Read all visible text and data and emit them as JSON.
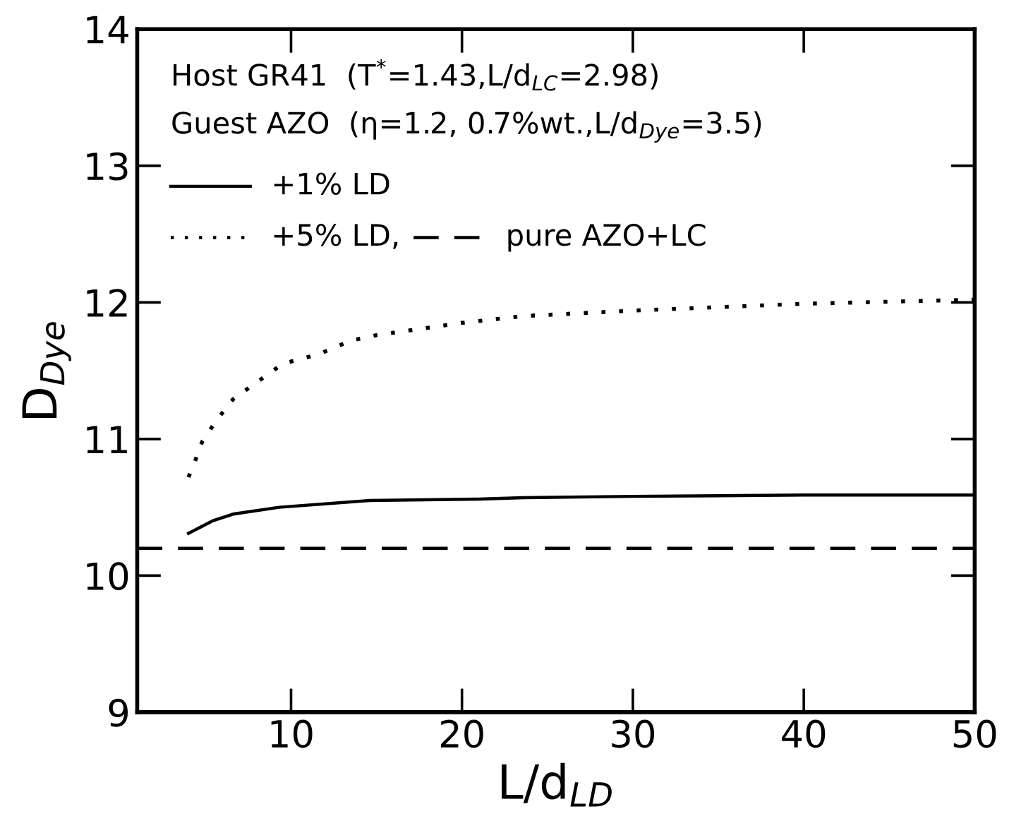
{
  "chart_data": {
    "type": "line",
    "xlabel": "L/d$_{LD}$",
    "ylabel": "D$_{Dye}$",
    "annotations": [
      "Host GR41  (T$^{*}$=1.43,L/d$_{LC}$=2.98)",
      "Guest AZO  (η=1.2, 0.7%wt.,L/d$_{Dye}$=3.5)"
    ],
    "xlim": [
      1,
      50
    ],
    "ylim": [
      9,
      14
    ],
    "xticks": [
      10,
      20,
      30,
      40,
      50
    ],
    "yticks": [
      9,
      10,
      11,
      12,
      13,
      14
    ],
    "grid": false,
    "legend": "top left",
    "marker": "none",
    "series": [
      {
        "name": "+1% LD",
        "color": "#000000",
        "line_style": "solid",
        "x": [
          4.0,
          5.4,
          6.6,
          9.3,
          14.6,
          21,
          23.6,
          30,
          40,
          50
        ],
        "values": [
          10.31,
          10.4,
          10.45,
          10.5,
          10.55,
          10.56,
          10.57,
          10.58,
          10.59,
          10.59
        ]
      },
      {
        "name": "+5% LD,",
        "color": "#000000",
        "line_style": "dotted",
        "x": [
          4.0,
          4.3,
          4.8,
          5.6,
          6.6,
          7.6,
          9.5,
          11.6,
          13.5,
          15,
          20,
          23.6,
          30,
          40,
          50
        ],
        "values": [
          10.72,
          10.81,
          10.98,
          11.13,
          11.29,
          11.38,
          11.55,
          11.62,
          11.72,
          11.76,
          11.85,
          11.9,
          11.94,
          11.99,
          12.02
        ]
      },
      {
        "name": "pure AZO+LC",
        "color": "#000000",
        "line_style": "dashed",
        "x": [
          1,
          50
        ],
        "values": [
          10.2,
          10.2
        ]
      }
    ]
  }
}
